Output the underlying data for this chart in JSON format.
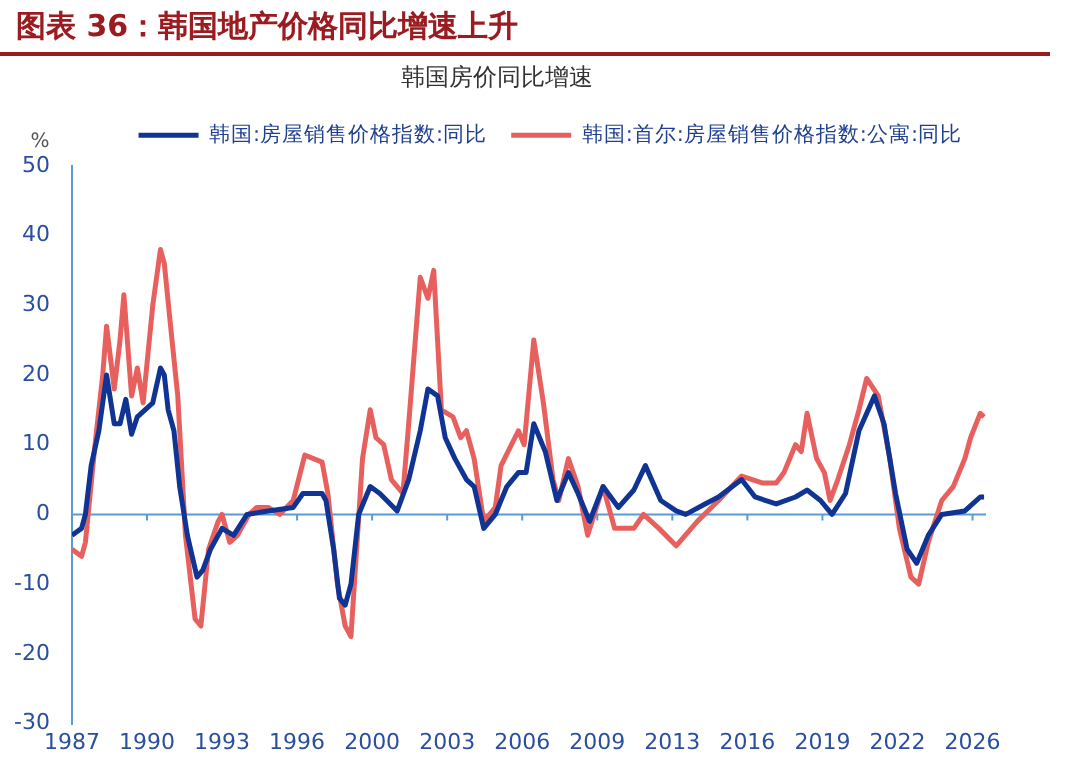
{
  "chart_data": {
    "type": "line",
    "title": "图表 36：韩国地产价格同比增速上升",
    "subtitle": "韩国房价同比增速",
    "ylabel": "%",
    "xlim": [
      "1987-01",
      "2026-08"
    ],
    "xticks": [
      {
        "value": "1987-01",
        "label": "1987"
      },
      {
        "value": "1990-04",
        "label": "1990"
      },
      {
        "value": "1993-07",
        "label": "1993"
      },
      {
        "value": "1996-10",
        "label": "1996"
      },
      {
        "value": "2000-01",
        "label": "2000"
      },
      {
        "value": "2003-04",
        "label": "2003"
      },
      {
        "value": "2006-07",
        "label": "2006"
      },
      {
        "value": "2009-10",
        "label": "2009"
      },
      {
        "value": "2013-01",
        "label": "2013"
      },
      {
        "value": "2016-04",
        "label": "2016"
      },
      {
        "value": "2019-07",
        "label": "2019"
      },
      {
        "value": "2022-10",
        "label": "2022"
      },
      {
        "value": "2026-01",
        "label": "2026"
      }
    ],
    "ylim": [
      -30,
      50
    ],
    "yticks": [
      -30,
      -20,
      -10,
      0,
      10,
      20,
      30,
      40,
      50
    ],
    "grid": false,
    "legend": "top",
    "marker": "none",
    "line_style": "solid",
    "ref_lines": [
      {
        "axis": "y",
        "value": 0,
        "color": "#5b9bd5"
      }
    ],
    "series": [
      {
        "name": "韩国:房屋销售价格指数:同比",
        "color": "#0f3494",
        "x": [
          "1987-01",
          "1987-06",
          "1987-08",
          "1987-11",
          "1988-03",
          "1988-07",
          "1988-11",
          "1989-02",
          "1989-05",
          "1989-08",
          "1989-11",
          "1990-03",
          "1990-07",
          "1990-11",
          "1991-01",
          "1991-03",
          "1991-06",
          "1991-09",
          "1992-01",
          "1992-06",
          "1992-09",
          "1993-01",
          "1993-07",
          "1994-01",
          "1994-08",
          "1995-07",
          "1996-08",
          "1997-01",
          "1997-11",
          "1998-01",
          "1998-05",
          "1998-08",
          "1998-11",
          "1999-02",
          "1999-06",
          "1999-12",
          "2000-05",
          "2001-02",
          "2001-08",
          "2002-02",
          "2002-06",
          "2002-11",
          "2003-03",
          "2003-08",
          "2004-02",
          "2004-06",
          "2004-11",
          "2005-05",
          "2005-11",
          "2006-05",
          "2006-09",
          "2007-01",
          "2007-07",
          "2008-01",
          "2008-07",
          "2008-12",
          "2009-06",
          "2010-01",
          "2010-09",
          "2011-05",
          "2011-11",
          "2012-07",
          "2013-03",
          "2013-08",
          "2014-06",
          "2015-01",
          "2016-01",
          "2016-08",
          "2017-07",
          "2018-05",
          "2018-11",
          "2019-06",
          "2019-12",
          "2020-07",
          "2021-02",
          "2021-10",
          "2022-03",
          "2022-09",
          "2023-03",
          "2023-08",
          "2024-02",
          "2024-09",
          "2025-09",
          "2026-05",
          "2026-07"
        ],
        "values": [
          -3,
          -2,
          0,
          7,
          12,
          20,
          13,
          13,
          16.5,
          11.5,
          14,
          15,
          16,
          21,
          20,
          15,
          12,
          4,
          -3,
          -9,
          -8,
          -5,
          -2,
          -3,
          0,
          0.5,
          1,
          3,
          3,
          2,
          -5,
          -12,
          -13,
          -10,
          0,
          4,
          3,
          0.5,
          5,
          12,
          18,
          17,
          11,
          8,
          5,
          4,
          -2,
          0,
          4,
          6,
          6,
          13,
          9,
          2,
          6,
          3,
          -1,
          4,
          1,
          3.5,
          7,
          2,
          0.5,
          0,
          1.5,
          2.5,
          5,
          2.5,
          1.5,
          2.5,
          3.5,
          2,
          0,
          3,
          12,
          17,
          13,
          3,
          -5,
          -7,
          -3,
          0,
          0.5,
          2.5,
          2.5
        ]
      },
      {
        "name": "韩国:首尔:房屋销售价格指数:公寓:同比",
        "color": "#e8605e",
        "x": [
          "1987-01",
          "1987-06",
          "1987-08",
          "1988-01",
          "1988-05",
          "1988-07",
          "1988-11",
          "1989-02",
          "1989-04",
          "1989-08",
          "1989-11",
          "1990-02",
          "1990-07",
          "1990-11",
          "1991-01",
          "1991-05",
          "1991-08",
          "1991-12",
          "1992-05",
          "1992-08",
          "1992-12",
          "1993-05",
          "1993-07",
          "1993-11",
          "1994-03",
          "1994-09",
          "1995-01",
          "1995-07",
          "1996-01",
          "1996-08",
          "1997-02",
          "1997-11",
          "1998-02",
          "1998-07",
          "1998-11",
          "1999-02",
          "1999-08",
          "1999-12",
          "2000-03",
          "2000-07",
          "2000-11",
          "2001-05",
          "2001-08",
          "2002-02",
          "2002-06",
          "2002-09",
          "2003-01",
          "2003-07",
          "2003-11",
          "2004-02",
          "2004-06",
          "2004-11",
          "2005-05",
          "2005-08",
          "2006-05",
          "2006-08",
          "2007-01",
          "2007-06",
          "2007-11",
          "2008-02",
          "2008-07",
          "2008-12",
          "2009-05",
          "2010-01",
          "2010-07",
          "2011-05",
          "2011-10",
          "2012-06",
          "2013-03",
          "2014-02",
          "2015-01",
          "2016-01",
          "2016-12",
          "2017-07",
          "2017-11",
          "2018-05",
          "2018-08",
          "2018-11",
          "2019-04",
          "2019-08",
          "2019-11",
          "2020-03",
          "2020-09",
          "2021-02",
          "2021-06",
          "2021-12",
          "2022-06",
          "2022-11",
          "2023-05",
          "2023-09",
          "2024-02",
          "2024-09",
          "2025-03",
          "2025-09",
          "2025-12",
          "2026-05",
          "2026-07"
        ],
        "values": [
          -5,
          -6,
          -4,
          10,
          20,
          27,
          18,
          25,
          31.5,
          17,
          21,
          16,
          30,
          38,
          36,
          25,
          17,
          -3,
          -15,
          -16,
          -5,
          -1,
          0,
          -4,
          -3,
          0,
          1,
          1,
          0,
          2,
          8.5,
          7.5,
          3,
          -10,
          -16,
          -17.5,
          8,
          15,
          11,
          10,
          5,
          3,
          13,
          34,
          31,
          35,
          15,
          14,
          11,
          12,
          8,
          -1,
          1,
          7,
          12,
          10,
          25,
          16,
          5,
          2,
          8,
          4,
          -3,
          4,
          -2,
          -2,
          0,
          -2,
          -4.5,
          -1,
          2,
          5.5,
          4.5,
          4.5,
          6,
          10,
          9,
          14.5,
          8,
          6,
          2,
          5,
          10,
          15,
          19.5,
          17,
          8,
          -2,
          -9,
          -10,
          -4,
          2,
          4,
          8,
          11,
          14.5,
          14
        ]
      }
    ]
  }
}
